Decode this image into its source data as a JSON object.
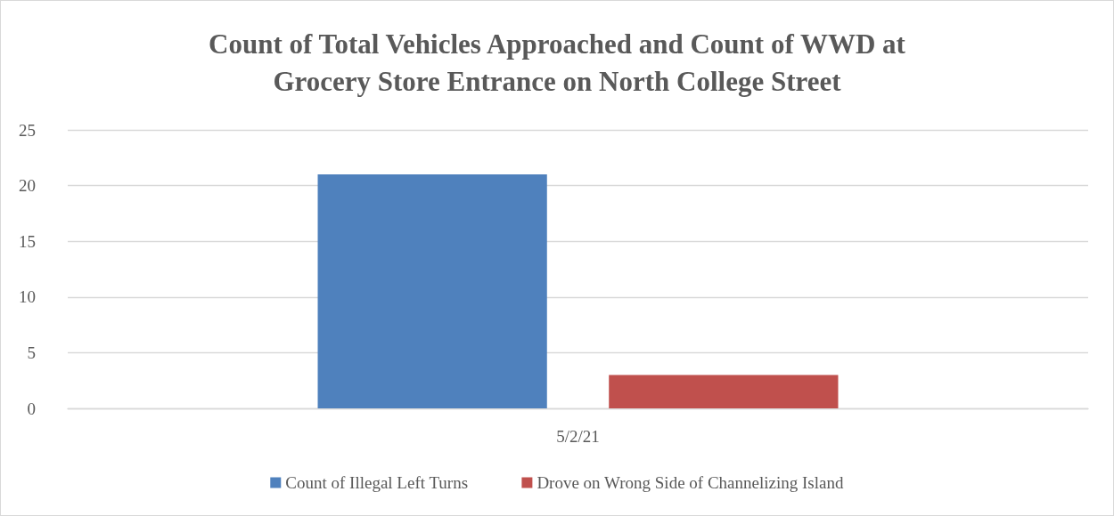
{
  "chart_data": {
    "type": "bar",
    "title": "Count of Total Vehicles Approached and Count of WWD at\nGrocery Store Entrance on North College Street",
    "categories": [
      "5/2/21"
    ],
    "series": [
      {
        "name": "Count of Illegal Left Turns",
        "color": "#4f81bd",
        "values": [
          21
        ]
      },
      {
        "name": "Drove on Wrong Side of Channelizing Island",
        "color": "#c0504d",
        "values": [
          3
        ]
      }
    ],
    "ylim": [
      0,
      25
    ],
    "yticks": [
      0,
      5,
      10,
      15,
      20,
      25
    ],
    "grid": true,
    "legend": "bottom"
  }
}
